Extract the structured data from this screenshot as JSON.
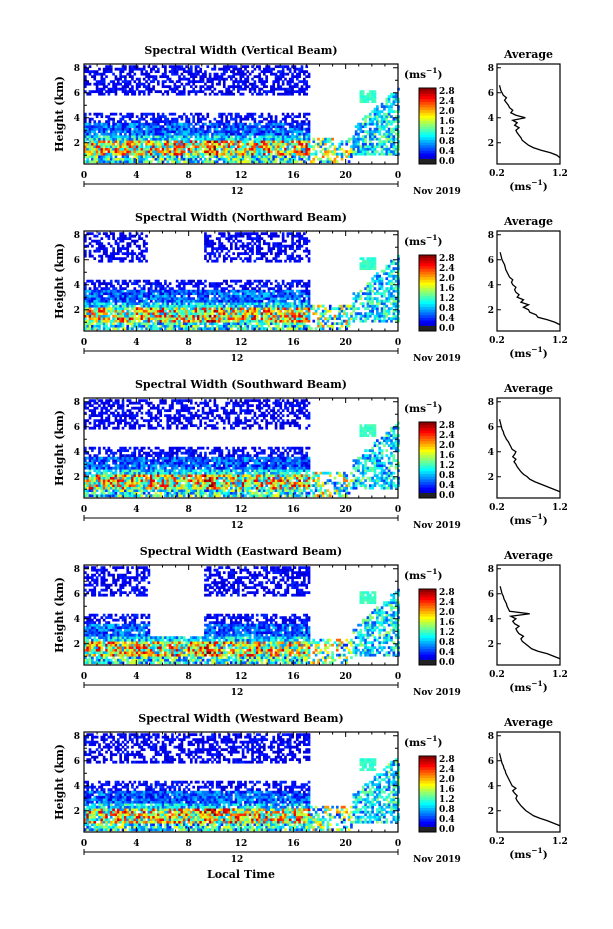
{
  "figure": {
    "x_label": "Local Time",
    "date_label": "Nov 2019",
    "day_label": "12",
    "y_label": "Height (km)",
    "unit_label": "(ms",
    "unit_exp": "−1",
    "avg_title": "Average"
  },
  "chart_data": [
    {
      "type": "heatmap",
      "title": "Spectral Width (Vertical Beam)",
      "xlabel": "",
      "ylabel": "Height (km)",
      "xlim": [
        0,
        24
      ],
      "ylim": [
        0.3,
        8.3
      ],
      "x_ticks": [
        "0",
        "4",
        "8",
        "12",
        "16",
        "20",
        "0"
      ],
      "y_ticks": [
        "2",
        "4",
        "6",
        "8"
      ],
      "colorbar": {
        "label": "(ms−1)",
        "range": [
          0.0,
          2.8
        ],
        "ticks": [
          "2.8",
          "2.4",
          "2.0",
          "1.6",
          "1.2",
          "0.8",
          "0.4",
          "0.0"
        ]
      },
      "average_profile": {
        "title": "Average",
        "xlabel": "(ms−1)",
        "xlim": [
          0.2,
          1.2
        ],
        "x_ticks": [
          "0.2",
          "1.2"
        ],
        "y_ticks": [
          "2",
          "4",
          "6",
          "8"
        ],
        "height": [
          0.8,
          1.0,
          1.2,
          1.4,
          1.6,
          1.8,
          2.0,
          2.2,
          2.4,
          2.6,
          2.8,
          3.0,
          3.2,
          3.4,
          3.6,
          3.8,
          4.0,
          4.2,
          4.4,
          4.6,
          4.8,
          5.0,
          5.2,
          5.4,
          5.6,
          5.8,
          6.0,
          6.2,
          6.4,
          6.6
        ],
        "width": [
          1.2,
          1.15,
          1.05,
          0.9,
          0.78,
          0.7,
          0.65,
          0.6,
          0.58,
          0.55,
          0.52,
          0.5,
          0.55,
          0.48,
          0.52,
          0.45,
          0.65,
          0.5,
          0.42,
          0.45,
          0.4,
          0.38,
          0.35,
          0.32,
          0.35,
          0.3,
          0.28,
          0.26,
          0.25,
          0.24
        ]
      }
    },
    {
      "type": "heatmap",
      "title": "Spectral Width (Northward Beam)",
      "xlabel": "",
      "ylabel": "Height (km)",
      "xlim": [
        0,
        24
      ],
      "ylim": [
        0.3,
        8.3
      ],
      "x_ticks": [
        "0",
        "4",
        "8",
        "12",
        "16",
        "20",
        "0"
      ],
      "y_ticks": [
        "2",
        "4",
        "6",
        "8"
      ],
      "colorbar": {
        "label": "(ms−1)",
        "range": [
          0.0,
          2.8
        ],
        "ticks": [
          "2.8",
          "2.4",
          "2.0",
          "1.6",
          "1.2",
          "0.8",
          "0.4",
          "0.0"
        ]
      },
      "average_profile": {
        "title": "Average",
        "xlabel": "(ms−1)",
        "xlim": [
          0.2,
          1.2
        ],
        "x_ticks": [
          "0.2",
          "1.2"
        ],
        "y_ticks": [
          "2",
          "4",
          "6",
          "8"
        ],
        "height": [
          0.8,
          1.0,
          1.2,
          1.4,
          1.6,
          1.8,
          2.0,
          2.2,
          2.4,
          2.6,
          2.8,
          3.0,
          3.2,
          3.4,
          3.6,
          3.8,
          4.0,
          4.2,
          4.4,
          4.6,
          4.8,
          5.0,
          5.2,
          5.4,
          5.6,
          5.8,
          6.0,
          6.2,
          6.4,
          6.6
        ],
        "width": [
          1.2,
          1.12,
          1.0,
          0.85,
          0.82,
          0.72,
          0.7,
          0.62,
          0.7,
          0.58,
          0.62,
          0.52,
          0.55,
          0.5,
          0.48,
          0.5,
          0.45,
          0.43,
          0.45,
          0.4,
          0.38,
          0.36,
          0.34,
          0.33,
          0.32,
          0.3,
          0.28,
          0.27,
          0.26,
          0.25
        ]
      }
    },
    {
      "type": "heatmap",
      "title": "Spectral Width (Southward Beam)",
      "xlabel": "",
      "ylabel": "Height (km)",
      "xlim": [
        0,
        24
      ],
      "ylim": [
        0.3,
        8.3
      ],
      "x_ticks": [
        "0",
        "4",
        "8",
        "12",
        "16",
        "20",
        "0"
      ],
      "y_ticks": [
        "2",
        "4",
        "6",
        "8"
      ],
      "colorbar": {
        "label": "(ms−1)",
        "range": [
          0.0,
          2.8
        ],
        "ticks": [
          "2.8",
          "2.4",
          "2.0",
          "1.6",
          "1.2",
          "0.8",
          "0.4",
          "0.0"
        ]
      },
      "average_profile": {
        "title": "Average",
        "xlabel": "(ms−1)",
        "xlim": [
          0.2,
          1.2
        ],
        "x_ticks": [
          "0.2",
          "1.2"
        ],
        "y_ticks": [
          "2",
          "4",
          "6",
          "8"
        ],
        "height": [
          0.8,
          1.0,
          1.2,
          1.4,
          1.6,
          1.8,
          2.0,
          2.2,
          2.4,
          2.6,
          2.8,
          3.0,
          3.2,
          3.4,
          3.6,
          3.8,
          4.0,
          4.2,
          4.4,
          4.6,
          4.8,
          5.0,
          5.2,
          5.4,
          5.6,
          5.8,
          6.0,
          6.2,
          6.4,
          6.6
        ],
        "width": [
          1.2,
          1.1,
          1.0,
          0.9,
          0.8,
          0.72,
          0.68,
          0.62,
          0.58,
          0.55,
          0.52,
          0.5,
          0.47,
          0.5,
          0.45,
          0.48,
          0.5,
          0.44,
          0.42,
          0.4,
          0.38,
          0.35,
          0.33,
          0.31,
          0.3,
          0.28,
          0.27,
          0.26,
          0.25,
          0.24
        ]
      }
    },
    {
      "type": "heatmap",
      "title": "Spectral Width (Eastward Beam)",
      "xlabel": "",
      "ylabel": "Height (km)",
      "xlim": [
        0,
        24
      ],
      "ylim": [
        0.3,
        8.3
      ],
      "x_ticks": [
        "0",
        "4",
        "8",
        "12",
        "16",
        "20",
        "0"
      ],
      "y_ticks": [
        "2",
        "4",
        "6",
        "8"
      ],
      "colorbar": {
        "label": "(ms−1)",
        "range": [
          0.0,
          2.8
        ],
        "ticks": [
          "2.8",
          "2.4",
          "2.0",
          "1.6",
          "1.2",
          "0.8",
          "0.4",
          "0.0"
        ]
      },
      "average_profile": {
        "title": "Average",
        "xlabel": "(ms−1)",
        "xlim": [
          0.2,
          1.2
        ],
        "x_ticks": [
          "0.2",
          "1.2"
        ],
        "y_ticks": [
          "2",
          "4",
          "6",
          "8"
        ],
        "height": [
          0.8,
          1.0,
          1.2,
          1.4,
          1.6,
          1.8,
          2.0,
          2.2,
          2.4,
          2.6,
          2.8,
          3.0,
          3.2,
          3.4,
          3.6,
          3.8,
          4.0,
          4.2,
          4.4,
          4.6,
          4.8,
          5.0,
          5.2,
          5.4,
          5.6,
          5.8,
          6.0,
          6.2,
          6.4,
          6.6
        ],
        "width": [
          1.2,
          1.1,
          1.0,
          0.85,
          0.75,
          0.7,
          0.65,
          0.6,
          0.58,
          0.62,
          0.55,
          0.52,
          0.5,
          0.55,
          0.48,
          0.45,
          0.5,
          0.42,
          0.72,
          0.4,
          0.38,
          0.36,
          0.35,
          0.33,
          0.31,
          0.3,
          0.28,
          0.27,
          0.26,
          0.25
        ]
      }
    },
    {
      "type": "heatmap",
      "title": "Spectral Width (Westward Beam)",
      "xlabel": "Local Time",
      "ylabel": "Height (km)",
      "xlim": [
        0,
        24
      ],
      "ylim": [
        0.3,
        8.3
      ],
      "x_ticks": [
        "0",
        "4",
        "8",
        "12",
        "16",
        "20",
        "0"
      ],
      "y_ticks": [
        "2",
        "4",
        "6",
        "8"
      ],
      "colorbar": {
        "label": "(ms−1)",
        "range": [
          0.0,
          2.8
        ],
        "ticks": [
          "2.8",
          "2.4",
          "2.0",
          "1.6",
          "1.2",
          "0.8",
          "0.4",
          "0.0"
        ]
      },
      "average_profile": {
        "title": "Average",
        "xlabel": "(ms−1)",
        "xlim": [
          0.2,
          1.2
        ],
        "x_ticks": [
          "0.2",
          "1.2"
        ],
        "y_ticks": [
          "2",
          "4",
          "6",
          "8"
        ],
        "height": [
          0.8,
          1.0,
          1.2,
          1.4,
          1.6,
          1.8,
          2.0,
          2.2,
          2.4,
          2.6,
          2.8,
          3.0,
          3.2,
          3.4,
          3.6,
          3.8,
          4.0,
          4.2,
          4.4,
          4.6,
          4.8,
          5.0,
          5.2,
          5.4,
          5.6,
          5.8,
          6.0,
          6.2,
          6.4,
          6.6
        ],
        "width": [
          1.2,
          1.1,
          1.0,
          0.88,
          0.78,
          0.72,
          0.66,
          0.62,
          0.58,
          0.55,
          0.52,
          0.5,
          0.52,
          0.48,
          0.45,
          0.5,
          0.44,
          0.42,
          0.4,
          0.38,
          0.36,
          0.34,
          0.33,
          0.31,
          0.3,
          0.28,
          0.27,
          0.26,
          0.25,
          0.24
        ]
      }
    }
  ]
}
